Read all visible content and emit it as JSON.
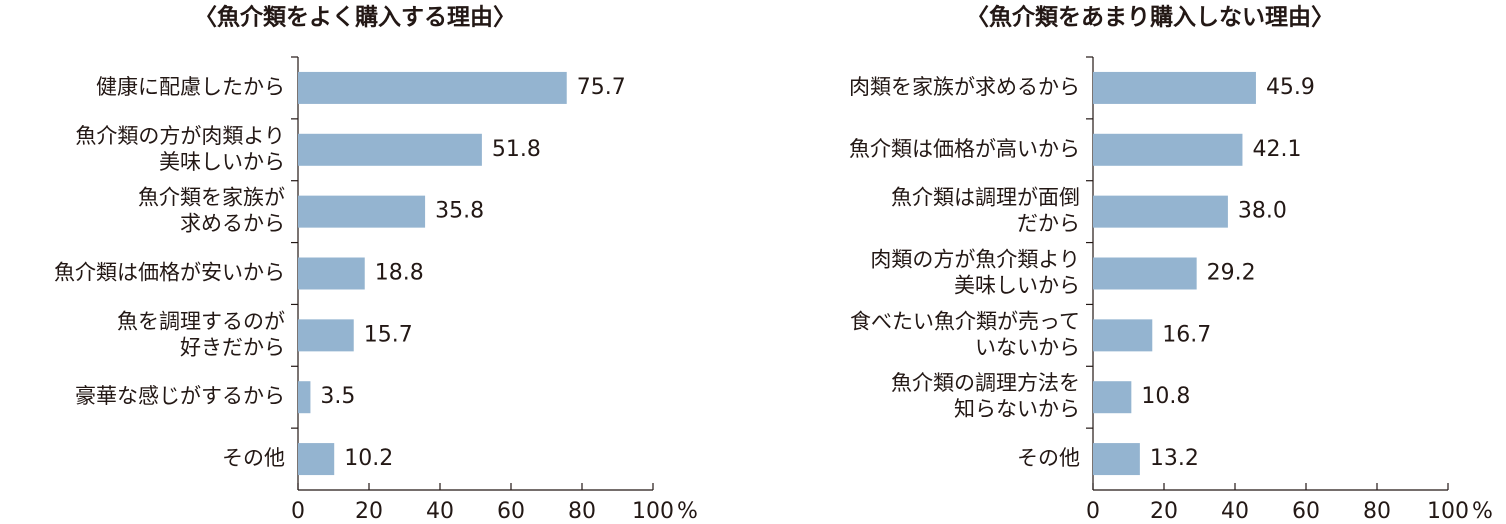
{
  "chart_data": [
    {
      "type": "barh",
      "title": "〈魚介類をよく購入する理由〉",
      "categories": [
        "健康に配慮したから",
        "魚介類の方が肉類より\n美味しいから",
        "魚介類を家族が\n求めるから",
        "魚介類は価格が安いから",
        "魚を調理するのが\n好きだから",
        "豪華な感じがするから",
        "その他"
      ],
      "values": [
        75.7,
        51.8,
        35.8,
        18.8,
        15.7,
        3.5,
        10.2
      ],
      "value_labels": [
        "75.7",
        "51.8",
        "35.8",
        "18.8",
        "15.7",
        "3.5",
        "10.2"
      ],
      "color": "#94b4d0",
      "xlim": [
        0,
        100
      ],
      "xticks": [
        0,
        20,
        40,
        60,
        80,
        100
      ],
      "x_unit": "%"
    },
    {
      "type": "barh",
      "title": "〈魚介類をあまり購入しない理由〉",
      "categories": [
        "肉類を家族が求めるから",
        "魚介類は価格が高いから",
        "魚介類は調理が面倒\nだから",
        "肉類の方が魚介類より\n美味しいから",
        "食べたい魚介類が売って\nいないから",
        "魚介類の調理方法を\n知らないから",
        "その他"
      ],
      "values": [
        45.9,
        42.1,
        38.0,
        29.2,
        16.7,
        10.8,
        13.2
      ],
      "value_labels": [
        "45.9",
        "42.1",
        "38.0",
        "29.2",
        "16.7",
        "10.8",
        "13.2"
      ],
      "color": "#94b4d0",
      "xlim": [
        0,
        100
      ],
      "xticks": [
        0,
        20,
        40,
        60,
        80,
        100
      ],
      "x_unit": "%"
    }
  ]
}
